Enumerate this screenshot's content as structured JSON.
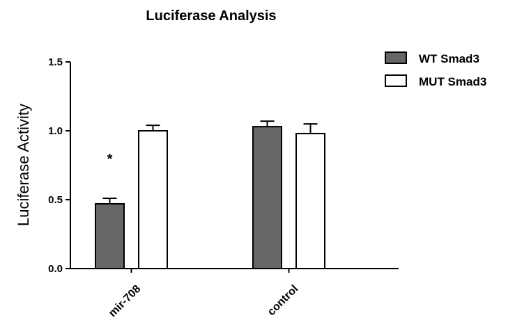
{
  "chart_data": {
    "type": "bar",
    "title": "Luciferase Analysis",
    "xlabel": "",
    "ylabel": "Luciferase Activity",
    "ylim": [
      0,
      1.5
    ],
    "yticks": [
      "0.0",
      "0.5",
      "1.0",
      "1.5"
    ],
    "categories": [
      "mir-708",
      "control"
    ],
    "series": [
      {
        "name": "WT Smad3",
        "values": [
          0.47,
          1.03
        ],
        "errors": [
          0.04,
          0.04
        ],
        "color": "#666666"
      },
      {
        "name": "MUT Smad3",
        "values": [
          1.0,
          0.98
        ],
        "errors": [
          0.04,
          0.07
        ],
        "color": "#ffffff"
      }
    ],
    "annotations": [
      {
        "text": "*",
        "category": "mir-708",
        "series": "WT Smad3"
      }
    ],
    "grid": false,
    "legend_position": "top-right"
  }
}
